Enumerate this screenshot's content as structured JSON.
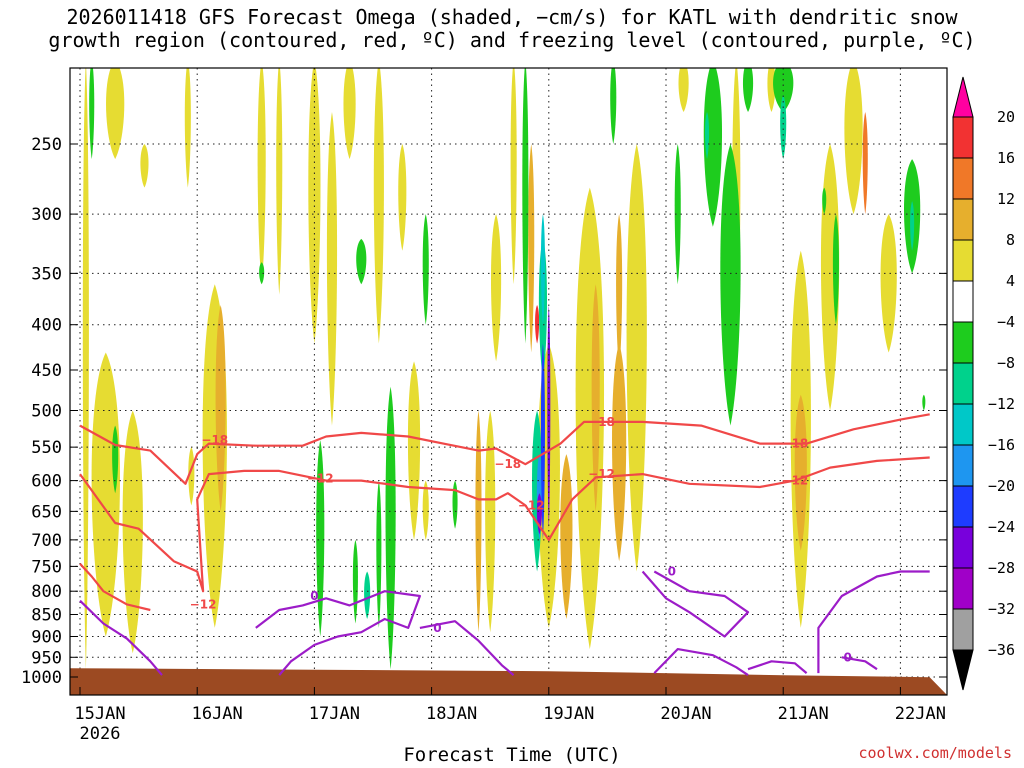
{
  "title_line1": "2026011418 GFS Forecast Omega (shaded, −cm/s) for KATL with dendritic snow",
  "title_line2": "growth region (contoured, red, ºC) and freezing level (contoured, purple, ºC)",
  "credit": "coolwx.com/models",
  "chart_data": {
    "type": "heatmap",
    "xlabel": "Forecast Time (UTC)",
    "ylabel": "",
    "x_axis": {
      "ticks": [
        "15JAN",
        "16JAN",
        "17JAN",
        "18JAN",
        "19JAN",
        "20JAN",
        "21JAN",
        "22JAN"
      ],
      "sub_label": "2026",
      "range_days": [
        0,
        7.25
      ]
    },
    "y_axis": {
      "ticks": [
        250,
        300,
        350,
        400,
        450,
        500,
        550,
        600,
        650,
        700,
        750,
        800,
        850,
        900,
        950,
        1000
      ],
      "range_hpa": [
        200,
        1000
      ],
      "scale": "log-pressure",
      "grid": true
    },
    "colorbar": {
      "levels": [
        20,
        16,
        12,
        8,
        4,
        -4,
        -8,
        -12,
        -16,
        -20,
        -24,
        -28,
        -32,
        -36
      ],
      "labels": [
        "20",
        "16",
        "12",
        "8",
        "4",
        "−4",
        "−8",
        "−12",
        "−16",
        "−20",
        "−24",
        "−28",
        "−32",
        "−36"
      ],
      "colors": [
        "#ff00a0",
        "#f23232",
        "#f07828",
        "#e6af2d",
        "#e6dc32",
        "#ffffff",
        "#1ecc1e",
        "#00d28c",
        "#00c8c8",
        "#1e96f0",
        "#1e3cff",
        "#7800dc",
        "#a000c8",
        "#a0a0a0",
        "#000000"
      ]
    },
    "shading_description": "omega shading",
    "contours_red": [
      {
        "label": "−18",
        "points": [
          [
            0.0,
            520
          ],
          [
            0.3,
            547
          ],
          [
            0.6,
            555
          ],
          [
            0.9,
            605
          ],
          [
            1.0,
            560
          ],
          [
            1.1,
            545
          ],
          [
            1.5,
            548
          ],
          [
            1.9,
            548
          ],
          [
            2.1,
            535
          ],
          [
            2.4,
            530
          ],
          [
            2.8,
            535
          ],
          [
            3.1,
            545
          ],
          [
            3.4,
            555
          ],
          [
            3.55,
            552
          ],
          [
            3.8,
            575
          ],
          [
            4.1,
            545
          ],
          [
            4.3,
            515
          ],
          [
            4.8,
            515
          ],
          [
            5.3,
            520
          ],
          [
            5.8,
            545
          ],
          [
            6.2,
            545
          ],
          [
            6.6,
            525
          ],
          [
            7.0,
            512
          ],
          [
            7.25,
            505
          ]
        ]
      },
      {
        "label": "−12",
        "points": [
          [
            0.0,
            590
          ],
          [
            0.3,
            670
          ],
          [
            0.5,
            680
          ],
          [
            0.8,
            740
          ],
          [
            1.0,
            760
          ],
          [
            1.05,
            800
          ],
          [
            1.0,
            630
          ],
          [
            1.1,
            590
          ],
          [
            1.4,
            585
          ],
          [
            1.7,
            585
          ],
          [
            2.1,
            600
          ],
          [
            2.4,
            600
          ],
          [
            2.8,
            610
          ],
          [
            3.2,
            615
          ],
          [
            3.4,
            630
          ],
          [
            3.55,
            630
          ],
          [
            3.65,
            620
          ],
          [
            3.8,
            640
          ],
          [
            4.0,
            700
          ],
          [
            4.2,
            630
          ],
          [
            4.4,
            595
          ],
          [
            4.8,
            590
          ],
          [
            5.2,
            605
          ],
          [
            5.8,
            610
          ],
          [
            6.1,
            600
          ],
          [
            6.4,
            580
          ],
          [
            6.8,
            570
          ],
          [
            7.25,
            565
          ]
        ]
      },
      {
        "label": "−12",
        "points": [
          [
            0.0,
            745
          ],
          [
            0.1,
            770
          ],
          [
            0.2,
            800
          ],
          [
            0.4,
            828
          ],
          [
            0.6,
            840
          ]
        ]
      }
    ],
    "contours_purple": [
      {
        "label": "0",
        "points": [
          [
            0.0,
            820
          ],
          [
            0.2,
            870
          ],
          [
            0.4,
            905
          ],
          [
            0.6,
            960
          ],
          [
            0.7,
            995
          ]
        ]
      },
      {
        "label": "0",
        "points": [
          [
            1.5,
            880
          ],
          [
            1.7,
            840
          ],
          [
            1.9,
            830
          ],
          [
            2.1,
            815
          ],
          [
            2.3,
            830
          ],
          [
            2.6,
            800
          ],
          [
            2.9,
            810
          ],
          [
            2.8,
            880
          ],
          [
            2.6,
            860
          ],
          [
            2.4,
            890
          ],
          [
            2.2,
            900
          ],
          [
            2.0,
            920
          ],
          [
            1.8,
            960
          ],
          [
            1.7,
            995
          ]
        ]
      },
      {
        "label": "0",
        "points": [
          [
            2.9,
            880
          ],
          [
            3.2,
            865
          ],
          [
            3.4,
            910
          ],
          [
            3.6,
            970
          ],
          [
            3.7,
            995
          ]
        ]
      },
      {
        "label": "0",
        "points": [
          [
            4.8,
            760
          ],
          [
            5.0,
            815
          ],
          [
            5.2,
            845
          ],
          [
            5.5,
            900
          ],
          [
            5.7,
            845
          ],
          [
            5.5,
            810
          ],
          [
            5.2,
            800
          ],
          [
            4.9,
            760
          ]
        ]
      },
      {
        "label": "0",
        "points": [
          [
            4.9,
            990
          ],
          [
            5.1,
            930
          ],
          [
            5.4,
            945
          ],
          [
            5.6,
            975
          ],
          [
            5.7,
            995
          ]
        ]
      },
      {
        "label": "0",
        "points": [
          [
            5.7,
            980
          ],
          [
            5.9,
            960
          ],
          [
            6.1,
            965
          ],
          [
            6.2,
            990
          ]
        ]
      },
      {
        "label": "0",
        "points": [
          [
            6.3,
            990
          ],
          [
            6.3,
            880
          ],
          [
            6.5,
            810
          ],
          [
            6.8,
            770
          ],
          [
            7.0,
            760
          ],
          [
            7.25,
            760
          ]
        ]
      },
      {
        "label": "0",
        "points": [
          [
            6.5,
            950
          ],
          [
            6.7,
            960
          ],
          [
            6.8,
            980
          ]
        ]
      }
    ],
    "contour_labels": [
      {
        "text": "−18",
        "day": 1.15,
        "p": 540,
        "color": "#f04848"
      },
      {
        "text": "−12",
        "day": 2.05,
        "p": 597,
        "color": "#f04848"
      },
      {
        "text": "−18",
        "day": 3.65,
        "p": 575,
        "color": "#f04848"
      },
      {
        "text": "−12",
        "day": 3.85,
        "p": 640,
        "color": "#f04848"
      },
      {
        "text": "−18",
        "day": 4.45,
        "p": 515,
        "color": "#f04848"
      },
      {
        "text": "−12",
        "day": 4.45,
        "p": 590,
        "color": "#f04848"
      },
      {
        "text": "−18",
        "day": 6.1,
        "p": 545,
        "color": "#f04848"
      },
      {
        "text": "−12",
        "day": 6.1,
        "p": 600,
        "color": "#f04848"
      },
      {
        "text": "−12",
        "day": 1.05,
        "p": 828,
        "color": "#f04848"
      },
      {
        "text": "0",
        "day": 2.0,
        "p": 810,
        "color": "#9c1cc8"
      },
      {
        "text": "0",
        "day": 3.05,
        "p": 880,
        "color": "#9c1cc8"
      },
      {
        "text": "0",
        "day": 5.05,
        "p": 760,
        "color": "#9c1cc8"
      },
      {
        "text": "0",
        "day": 6.55,
        "p": 950,
        "color": "#9c1cc8"
      }
    ],
    "ground_fill": {
      "top_hpa": 985,
      "color": "#9c4a22"
    }
  }
}
